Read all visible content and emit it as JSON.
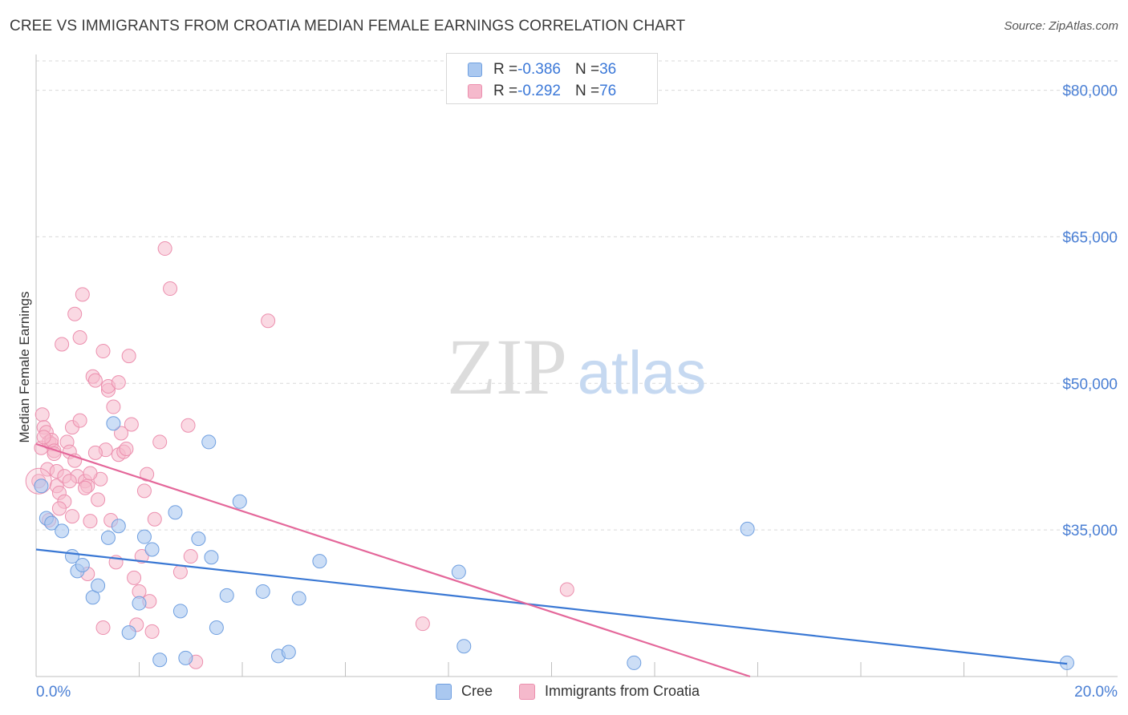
{
  "header": {
    "title": "CREE VS IMMIGRANTS FROM CROATIA MEDIAN FEMALE EARNINGS CORRELATION CHART",
    "source": "Source: ZipAtlas.com"
  },
  "watermark": {
    "zip": "ZIP",
    "atlas": "atlas"
  },
  "legend": {
    "rows": [
      {
        "r_label": "R = ",
        "r_value": "-0.386",
        "n_label": "N = ",
        "n_value": "36"
      },
      {
        "r_label": "R = ",
        "r_value": "-0.292",
        "n_label": "N = ",
        "n_value": "76"
      }
    ]
  },
  "colors": {
    "cree_fill": "#aac8f0",
    "cree_stroke": "#6f9fe0",
    "cree_line": "#3a78d4",
    "croatia_fill": "#f5b9cc",
    "croatia_stroke": "#ec8fae",
    "croatia_line": "#e4679a",
    "tick_label": "#4a7fd4",
    "grid": "#d9d9d9"
  },
  "chart_data": {
    "type": "scatter",
    "title": "CREE VS IMMIGRANTS FROM CROATIA MEDIAN FEMALE EARNINGS CORRELATION CHART",
    "xlabel": "",
    "ylabel": "Median Female Earnings",
    "xlim": [
      0,
      20
    ],
    "ylim": [
      20000,
      83000
    ],
    "x_tick_labels": [
      "0.0%",
      "20.0%"
    ],
    "y_ticks": [
      35000,
      50000,
      65000,
      80000
    ],
    "y_tick_labels": [
      "$35,000",
      "$50,000",
      "$65,000",
      "$80,000"
    ],
    "grid": true,
    "legend_position": "top-center",
    "series": [
      {
        "name": "Cree",
        "r": -0.386,
        "n": 36,
        "trend": {
          "x": [
            0,
            20
          ],
          "y": [
            33000,
            21300
          ]
        },
        "points": [
          [
            0.1,
            39500
          ],
          [
            0.2,
            36200
          ],
          [
            0.3,
            35700
          ],
          [
            0.5,
            34900
          ],
          [
            0.7,
            32300
          ],
          [
            0.8,
            30800
          ],
          [
            0.9,
            31400
          ],
          [
            1.1,
            28100
          ],
          [
            1.2,
            29300
          ],
          [
            1.4,
            34200
          ],
          [
            1.5,
            45900
          ],
          [
            1.6,
            35400
          ],
          [
            1.8,
            24500
          ],
          [
            2.0,
            27500
          ],
          [
            2.1,
            34300
          ],
          [
            2.25,
            33000
          ],
          [
            2.4,
            21700
          ],
          [
            2.7,
            36800
          ],
          [
            2.8,
            26700
          ],
          [
            2.9,
            21900
          ],
          [
            3.15,
            34100
          ],
          [
            3.35,
            44000
          ],
          [
            3.4,
            32200
          ],
          [
            3.5,
            25000
          ],
          [
            3.7,
            28300
          ],
          [
            3.95,
            37900
          ],
          [
            4.4,
            28700
          ],
          [
            4.7,
            22100
          ],
          [
            4.9,
            22500
          ],
          [
            5.1,
            28000
          ],
          [
            5.5,
            31800
          ],
          [
            8.2,
            30700
          ],
          [
            8.3,
            23100
          ],
          [
            11.6,
            21400
          ],
          [
            13.8,
            35100
          ],
          [
            20.0,
            21400
          ]
        ]
      },
      {
        "name": "Immigrants from Croatia",
        "r": -0.292,
        "n": 76,
        "trend": {
          "x": [
            0,
            13.85
          ],
          "y": [
            43800,
            20000
          ]
        },
        "points": [
          [
            0.05,
            40000
          ],
          [
            0.1,
            43400
          ],
          [
            0.12,
            46800
          ],
          [
            0.15,
            45500
          ],
          [
            0.2,
            45000
          ],
          [
            0.22,
            41200
          ],
          [
            0.25,
            44000
          ],
          [
            0.3,
            43800
          ],
          [
            0.3,
            44200
          ],
          [
            0.35,
            43100
          ],
          [
            0.4,
            41000
          ],
          [
            0.4,
            39500
          ],
          [
            0.45,
            38800
          ],
          [
            0.5,
            54000
          ],
          [
            0.55,
            37900
          ],
          [
            0.6,
            44000
          ],
          [
            0.65,
            43000
          ],
          [
            0.7,
            36400
          ],
          [
            0.7,
            45500
          ],
          [
            0.75,
            57100
          ],
          [
            0.8,
            40500
          ],
          [
            0.85,
            46200
          ],
          [
            0.85,
            54700
          ],
          [
            0.9,
            59100
          ],
          [
            0.95,
            40000
          ],
          [
            1.0,
            30500
          ],
          [
            1.0,
            39500
          ],
          [
            1.05,
            35900
          ],
          [
            1.1,
            50700
          ],
          [
            1.15,
            50300
          ],
          [
            1.2,
            38100
          ],
          [
            1.25,
            40200
          ],
          [
            1.3,
            25000
          ],
          [
            1.3,
            53300
          ],
          [
            1.35,
            43200
          ],
          [
            1.4,
            49300
          ],
          [
            1.45,
            36000
          ],
          [
            1.5,
            47600
          ],
          [
            1.55,
            31700
          ],
          [
            1.6,
            42700
          ],
          [
            1.65,
            44900
          ],
          [
            1.7,
            43000
          ],
          [
            1.8,
            52800
          ],
          [
            1.85,
            45800
          ],
          [
            1.9,
            30100
          ],
          [
            1.95,
            25300
          ],
          [
            2.0,
            28700
          ],
          [
            2.05,
            32300
          ],
          [
            2.1,
            39000
          ],
          [
            2.15,
            40700
          ],
          [
            2.2,
            27700
          ],
          [
            2.25,
            24600
          ],
          [
            2.3,
            36100
          ],
          [
            2.4,
            44000
          ],
          [
            2.5,
            63800
          ],
          [
            2.6,
            59700
          ],
          [
            2.8,
            30700
          ],
          [
            2.95,
            45700
          ],
          [
            3.0,
            32300
          ],
          [
            3.1,
            21500
          ],
          [
            0.25,
            36000
          ],
          [
            0.55,
            40500
          ],
          [
            0.65,
            40000
          ],
          [
            0.95,
            39300
          ],
          [
            1.15,
            42900
          ],
          [
            1.4,
            49700
          ],
          [
            1.6,
            50100
          ],
          [
            1.75,
            43300
          ],
          [
            4.5,
            56400
          ],
          [
            7.5,
            25400
          ],
          [
            10.3,
            28900
          ],
          [
            0.15,
            44500
          ],
          [
            0.35,
            42800
          ],
          [
            0.75,
            42100
          ],
          [
            1.05,
            40800
          ],
          [
            0.45,
            37200
          ]
        ]
      }
    ]
  },
  "bottom_legend": {
    "items": [
      "Cree",
      "Immigrants from Croatia"
    ]
  }
}
